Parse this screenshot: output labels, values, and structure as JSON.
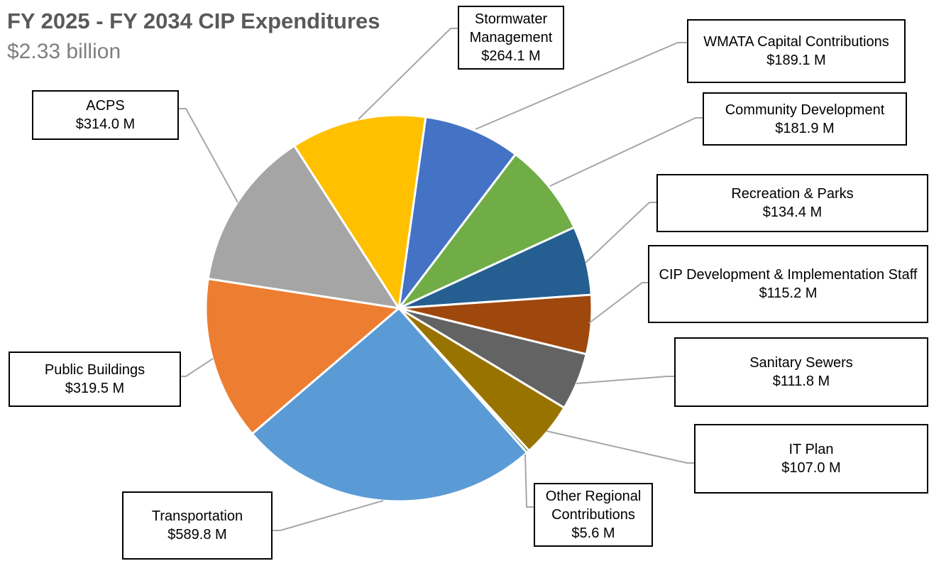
{
  "chart_data": {
    "type": "pie",
    "title": "FY 2025 - FY 2034 CIP Expenditures",
    "subtitle": "$2.33 billion",
    "categories": [
      "WMATA Capital Contributions",
      "Community Development",
      "Recreation & Parks",
      "CIP Development & Implementation Staff",
      "Sanitary Sewers",
      "IT Plan",
      "Other Regional Contributions",
      "Transportation",
      "Public Buildings",
      "ACPS",
      "Stormwater Management"
    ],
    "values": [
      189.1,
      181.9,
      134.4,
      115.2,
      111.8,
      107.0,
      5.6,
      589.8,
      319.5,
      314.0,
      264.1
    ],
    "value_labels": [
      "$189.1 M",
      "$181.9 M",
      "$134.4 M",
      "$115.2 M",
      "$111.8 M",
      "$107.0 M",
      "$5.6 M",
      "$589.8 M",
      "$319.5 M",
      "$314.0 M",
      "$264.1 M"
    ],
    "colors": [
      "#4472c4",
      "#70ad47",
      "#255e91",
      "#9e480e",
      "#636363",
      "#997300",
      "#43682b",
      "#5b9bd5",
      "#ed7d31",
      "#a5a5a5",
      "#ffc000"
    ]
  }
}
